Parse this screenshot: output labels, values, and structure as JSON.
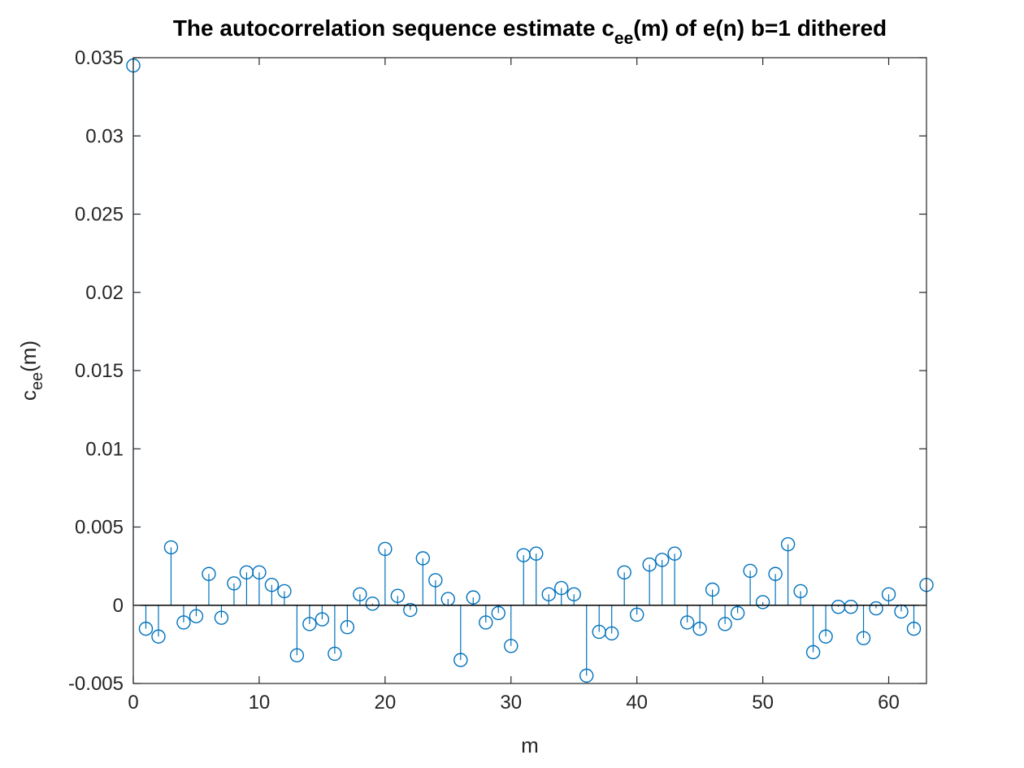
{
  "chart_data": {
    "type": "stem",
    "title": "The autocorrelation sequence estimate c",
    "title_sub": "ee",
    "title_tail": "(m) of e(n) b=1 dithered",
    "xlabel": "m",
    "ylabel": "c",
    "ylabel_sub": "ee",
    "ylabel_tail": "(m)",
    "xlim": [
      0,
      63
    ],
    "ylim": [
      -0.005,
      0.035
    ],
    "xticks": [
      0,
      10,
      20,
      30,
      40,
      50,
      60
    ],
    "yticks": [
      -0.005,
      0,
      0.005,
      0.01,
      0.015,
      0.02,
      0.025,
      0.03,
      0.035
    ],
    "ytick_labels": [
      "-0.005",
      "0",
      "0.005",
      "0.01",
      "0.015",
      "0.02",
      "0.025",
      "0.03",
      "0.035"
    ],
    "series_color": "#0072BD",
    "grid": false,
    "x": [
      0,
      1,
      2,
      3,
      4,
      5,
      6,
      7,
      8,
      9,
      10,
      11,
      12,
      13,
      14,
      15,
      16,
      17,
      18,
      19,
      20,
      21,
      22,
      23,
      24,
      25,
      26,
      27,
      28,
      29,
      30,
      31,
      32,
      33,
      34,
      35,
      36,
      37,
      38,
      39,
      40,
      41,
      42,
      43,
      44,
      45,
      46,
      47,
      48,
      49,
      50,
      51,
      52,
      53,
      54,
      55,
      56,
      57,
      58,
      59,
      60,
      61,
      62,
      63
    ],
    "values": [
      0.0345,
      -0.0015,
      -0.002,
      0.0037,
      -0.0011,
      -0.0007,
      0.002,
      -0.0008,
      0.0014,
      0.0021,
      0.0021,
      0.0013,
      0.0009,
      -0.0032,
      -0.0012,
      -0.0009,
      -0.0031,
      -0.0014,
      0.0007,
      0.0001,
      0.0036,
      0.0006,
      -0.0003,
      0.003,
      0.0016,
      0.0004,
      -0.0035,
      0.0005,
      -0.0011,
      -0.0005,
      -0.0026,
      0.0032,
      0.0033,
      0.0007,
      0.0011,
      0.0007,
      -0.0045,
      -0.0017,
      -0.0018,
      0.0021,
      -0.0006,
      0.0026,
      0.0029,
      0.0033,
      -0.0011,
      -0.0015,
      0.001,
      -0.0012,
      -0.0005,
      0.0022,
      0.0002,
      0.002,
      0.0039,
      0.0009,
      -0.003,
      -0.002,
      -0.0001,
      -0.0001,
      -0.0021,
      -0.0002,
      0.0007,
      -0.0004,
      -0.0015,
      0.0013
    ]
  }
}
